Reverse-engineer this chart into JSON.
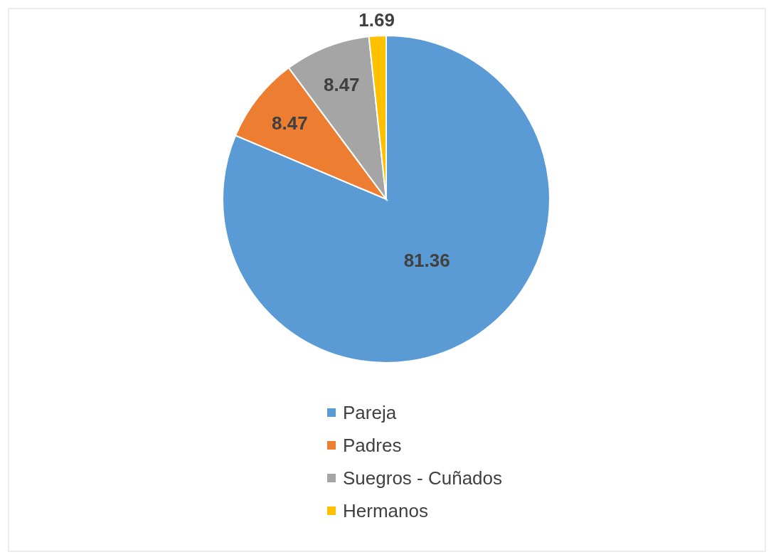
{
  "chart_data": {
    "type": "pie",
    "categories": [
      "Pareja",
      "Padres",
      "Suegros - Cuñados",
      "Hermanos"
    ],
    "values": [
      81.36,
      8.47,
      8.47,
      1.69
    ],
    "colors": [
      "#5b9bd5",
      "#ed7d31",
      "#a5a5a5",
      "#ffc000"
    ],
    "data_labels": true,
    "legend": "bottom"
  }
}
